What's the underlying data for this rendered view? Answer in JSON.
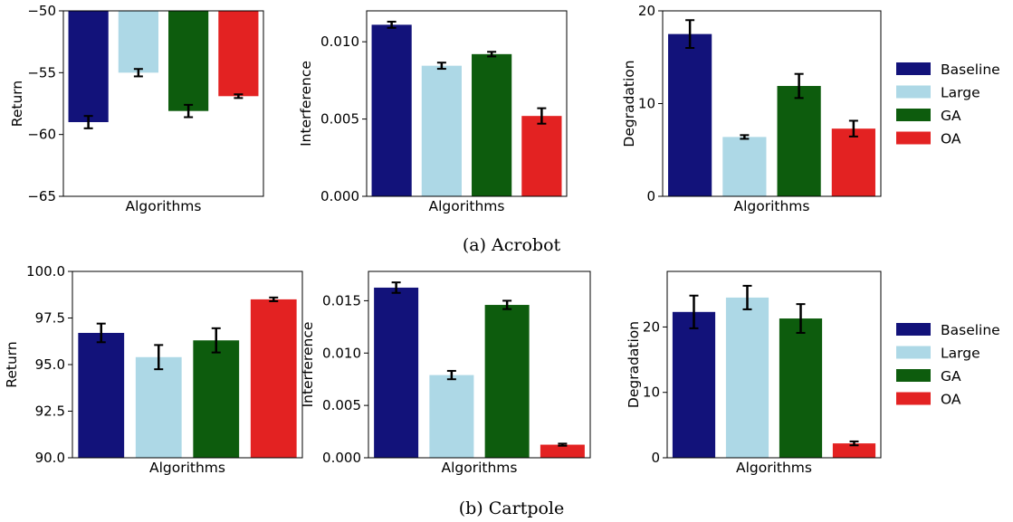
{
  "legend": {
    "entries": [
      {
        "label": "Baseline",
        "color": "#12127a"
      },
      {
        "label": "Large",
        "color": "#add8e6"
      },
      {
        "label": "GA",
        "color": "#0d5c0d"
      },
      {
        "label": "OA",
        "color": "#e32222"
      }
    ]
  },
  "captions": {
    "a": "(a) Acrobot",
    "b": "(b) Cartpole"
  },
  "chart_data": [
    {
      "type": "bar",
      "group": "Acrobot",
      "xlabel": "Algorithms",
      "ylabel": "Return",
      "categories": [
        "Baseline",
        "Large",
        "GA",
        "OA"
      ],
      "values": [
        -59.0,
        -55.0,
        -58.1,
        -56.9
      ],
      "errors": [
        0.5,
        0.3,
        0.5,
        0.15
      ],
      "ylim": [
        -65,
        -50
      ],
      "yticks": [
        -65,
        -60,
        -55,
        -50
      ],
      "tick_labels": [
        "−65",
        "−60",
        "−55",
        "−50"
      ],
      "bar_base": -50
    },
    {
      "type": "bar",
      "group": "Acrobot",
      "xlabel": "Algorithms",
      "ylabel": "Interference",
      "categories": [
        "Baseline",
        "Large",
        "GA",
        "OA"
      ],
      "values": [
        0.0111,
        0.00845,
        0.0092,
        0.0052
      ],
      "errors": [
        0.0002,
        0.0002,
        0.00015,
        0.0005
      ],
      "ylim": [
        0,
        0.012
      ],
      "yticks": [
        0,
        0.005,
        0.01
      ],
      "tick_labels": [
        "0.000",
        "0.005",
        "0.010"
      ],
      "bar_base": 0
    },
    {
      "type": "bar",
      "group": "Acrobot",
      "xlabel": "Algorithms",
      "ylabel": "Degradation",
      "categories": [
        "Baseline",
        "Large",
        "GA",
        "OA"
      ],
      "values": [
        17.5,
        6.4,
        11.9,
        7.3
      ],
      "errors": [
        1.5,
        0.2,
        1.3,
        0.85
      ],
      "ylim": [
        0,
        20
      ],
      "yticks": [
        0,
        10,
        20
      ],
      "tick_labels": [
        "0",
        "10",
        "20"
      ],
      "bar_base": 0
    },
    {
      "type": "bar",
      "group": "Cartpole",
      "xlabel": "Algorithms",
      "ylabel": "Return",
      "categories": [
        "Baseline",
        "Large",
        "GA",
        "OA"
      ],
      "values": [
        96.7,
        95.4,
        96.3,
        98.5
      ],
      "errors": [
        0.5,
        0.65,
        0.65,
        0.1
      ],
      "ylim": [
        90,
        100
      ],
      "yticks": [
        90,
        92.5,
        95,
        97.5,
        100
      ],
      "tick_labels": [
        "90.0",
        "92.5",
        "95.0",
        "97.5",
        "100.0"
      ],
      "bar_base": 90
    },
    {
      "type": "bar",
      "group": "Cartpole",
      "xlabel": "Algorithms",
      "ylabel": "Interference",
      "categories": [
        "Baseline",
        "Large",
        "GA",
        "OA"
      ],
      "values": [
        0.01625,
        0.0079,
        0.0146,
        0.00125
      ],
      "errors": [
        0.0005,
        0.0004,
        0.0004,
        0.0001
      ],
      "ylim": [
        0,
        0.0178
      ],
      "yticks": [
        0,
        0.005,
        0.01,
        0.015
      ],
      "tick_labels": [
        "0.000",
        "0.005",
        "0.010",
        "0.015"
      ],
      "bar_base": 0
    },
    {
      "type": "bar",
      "group": "Cartpole",
      "xlabel": "Algorithms",
      "ylabel": "Degradation",
      "categories": [
        "Baseline",
        "Large",
        "GA",
        "OA"
      ],
      "values": [
        22.3,
        24.5,
        21.3,
        2.2
      ],
      "errors": [
        2.5,
        1.8,
        2.2,
        0.3
      ],
      "ylim": [
        0,
        28.5
      ],
      "yticks": [
        0,
        10,
        20
      ],
      "tick_labels": [
        "0",
        "10",
        "20"
      ],
      "bar_base": 0
    }
  ]
}
